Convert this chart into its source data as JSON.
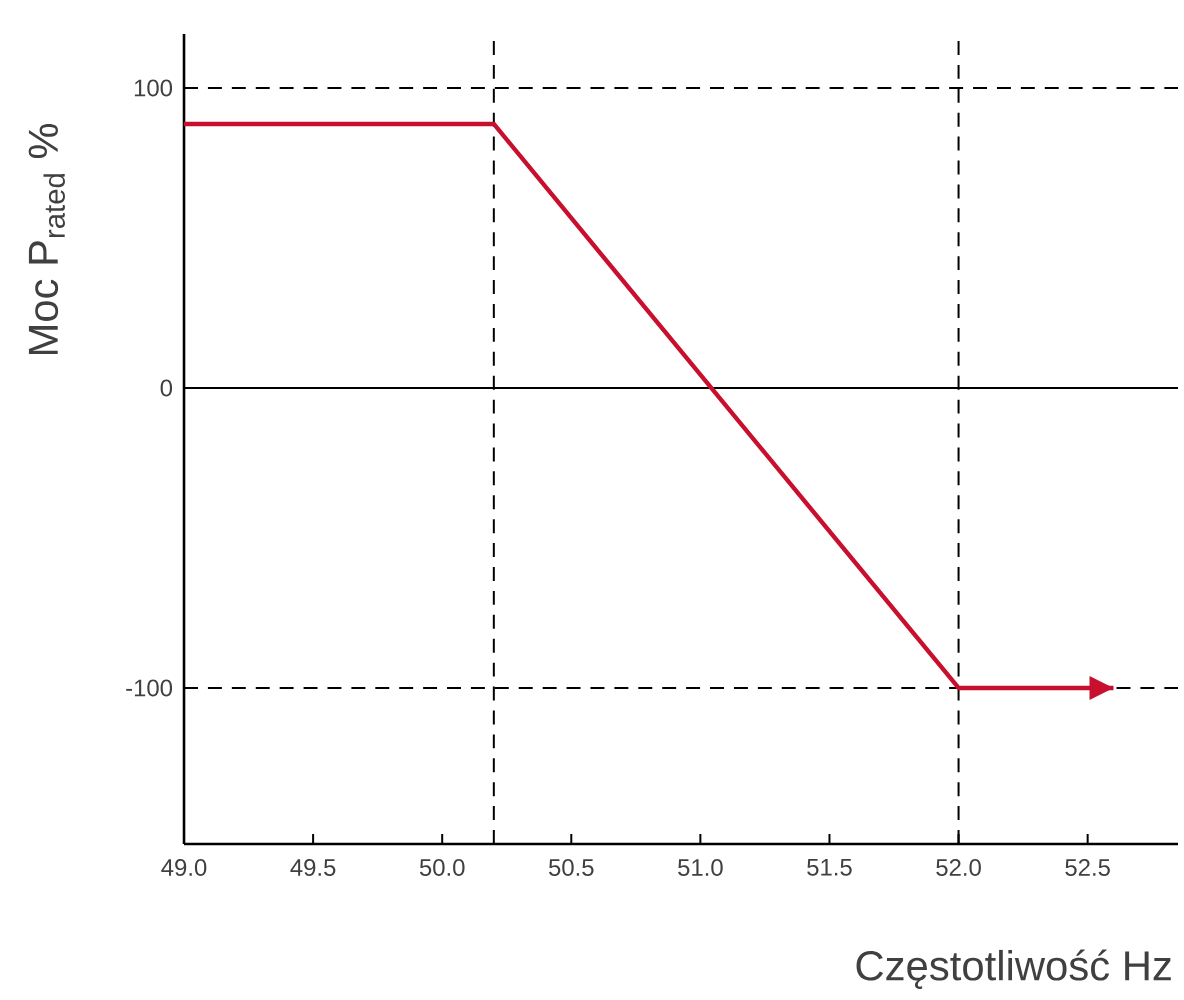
{
  "chart_data": {
    "type": "line",
    "xlabel": "Częstotliwość Hz",
    "ylabel": "Moc P$_{rated}$ %",
    "series": [
      {
        "color": "#c8102e",
        "x": [
          49.0,
          50.2,
          52.0,
          52.6
        ],
        "values": [
          88,
          88,
          -100,
          -100
        ]
      }
    ],
    "xlim": [
      49.0,
      52.85
    ],
    "ylim": [
      -152,
      118
    ],
    "xticks": [
      {
        "value": 49.0,
        "label": "49.0"
      },
      {
        "value": 49.5,
        "label": "49.5"
      },
      {
        "value": 50.0,
        "label": "50.0"
      },
      {
        "value": 50.5,
        "label": "50.5"
      },
      {
        "value": 51.0,
        "label": "51.0"
      },
      {
        "value": 51.5,
        "label": "51.5"
      },
      {
        "value": 52.0,
        "label": "52.0"
      },
      {
        "value": 52.5,
        "label": "52.5"
      }
    ],
    "yticks": [
      -100,
      0,
      100
    ],
    "ref_lines": [
      {
        "axis": "x",
        "value": 50.2,
        "line_style": "dashed"
      },
      {
        "axis": "x",
        "value": 52.0,
        "line_style": "dashed"
      },
      {
        "axis": "y",
        "value": 100,
        "line_style": "dashed"
      },
      {
        "axis": "y",
        "value": -100,
        "line_style": "dashed"
      },
      {
        "axis": "y",
        "value": 0,
        "line_style": "solid"
      }
    ],
    "grid": false,
    "marker": "none",
    "line_style": "solid"
  }
}
